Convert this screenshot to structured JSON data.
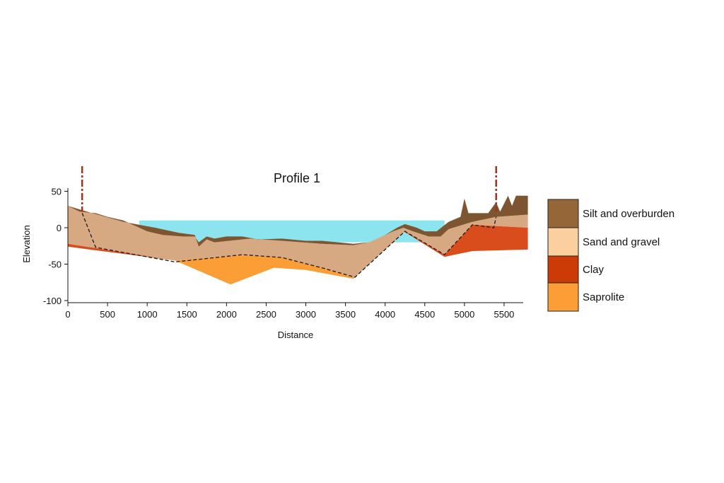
{
  "title": "Profile 1",
  "x_axis": {
    "label": "Distance",
    "min": 0,
    "max": 5800,
    "ticks": [
      "0",
      "500",
      "1000",
      "1500",
      "2000",
      "2500",
      "3000",
      "3500",
      "4000",
      "4500",
      "5000",
      "5500"
    ]
  },
  "y_axis": {
    "label": "Elevation",
    "min": -100,
    "max": 55,
    "ticks": [
      "50",
      "0",
      "-50",
      "-100"
    ]
  },
  "legend": [
    {
      "label": "Silt and overburden",
      "color": "#956638"
    },
    {
      "label": "Sand and gravel",
      "color": "#FBCF9E"
    },
    {
      "label": "Clay",
      "color": "#CC3A06"
    },
    {
      "label": "Saprolite",
      "color": "#FB9E35"
    }
  ],
  "colors": {
    "water": "#8BE4EE",
    "silt": "#7D5631",
    "sand": "#D6A982",
    "clay": "#D94D1C",
    "saprolite": "#FB9E35",
    "dashed_boundary": "#1a1a1a",
    "survey_marker": "#A5321A"
  },
  "water_level": 10,
  "layers": {
    "saprolite_bottom": [
      [
        0,
        -25
      ],
      [
        1350,
        -45
      ],
      [
        2050,
        -78
      ],
      [
        2600,
        -55
      ],
      [
        3000,
        -58
      ],
      [
        3600,
        -70
      ]
    ],
    "clay_boundary": [
      [
        0,
        -22
      ],
      [
        1350,
        -45
      ],
      [
        2200,
        -37
      ],
      [
        2700,
        -41
      ],
      [
        3200,
        -55
      ],
      [
        3620,
        -68
      ],
      [
        4250,
        -5
      ],
      [
        4750,
        -37
      ],
      [
        5100,
        4
      ],
      [
        5800,
        0
      ]
    ],
    "clay_bottom_east": [
      [
        4250,
        -6
      ],
      [
        4750,
        -40
      ],
      [
        5100,
        -32
      ],
      [
        5800,
        -30
      ]
    ],
    "sand_top": [
      [
        0,
        30
      ],
      [
        150,
        25
      ],
      [
        700,
        8
      ],
      [
        1100,
        0
      ],
      [
        1400,
        -7
      ],
      [
        1600,
        -10
      ],
      [
        1650,
        -26
      ],
      [
        1750,
        -16
      ],
      [
        1850,
        -20
      ],
      [
        2300,
        -15
      ],
      [
        2700,
        -18
      ],
      [
        3200,
        -22
      ],
      [
        3600,
        -24
      ],
      [
        3800,
        -20
      ],
      [
        4100,
        -5
      ],
      [
        4230,
        0
      ],
      [
        4350,
        -5
      ],
      [
        4550,
        -12
      ],
      [
        4700,
        -12
      ],
      [
        4800,
        -2
      ],
      [
        5100,
        8
      ],
      [
        5400,
        15
      ],
      [
        5800,
        18
      ]
    ],
    "silt_top": [
      [
        0,
        30
      ],
      [
        150,
        22
      ],
      [
        350,
        20
      ],
      [
        500,
        15
      ],
      [
        700,
        10
      ],
      [
        800,
        5
      ],
      [
        900,
        0
      ],
      [
        1000,
        -5
      ],
      [
        1200,
        -10
      ],
      [
        1450,
        -12
      ],
      [
        1600,
        -12
      ],
      [
        1650,
        -20
      ],
      [
        1750,
        -12
      ],
      [
        1850,
        -15
      ],
      [
        2000,
        -12
      ],
      [
        2200,
        -12
      ],
      [
        2400,
        -16
      ],
      [
        2700,
        -15
      ],
      [
        3000,
        -18
      ],
      [
        3200,
        -18
      ],
      [
        3400,
        -20
      ],
      [
        3600,
        -22
      ],
      [
        3800,
        -20
      ],
      [
        4000,
        -10
      ],
      [
        4150,
        0
      ],
      [
        4250,
        5
      ],
      [
        4400,
        0
      ],
      [
        4500,
        -5
      ],
      [
        4650,
        -5
      ],
      [
        4800,
        8
      ],
      [
        4950,
        15
      ],
      [
        5000,
        40
      ],
      [
        5050,
        20
      ],
      [
        5300,
        20
      ],
      [
        5400,
        35
      ],
      [
        5450,
        22
      ],
      [
        5550,
        44
      ],
      [
        5600,
        30
      ],
      [
        5650,
        44
      ],
      [
        5800,
        44
      ]
    ],
    "dashed_trace": [
      [
        180,
        20
      ],
      [
        350,
        -27
      ],
      [
        1350,
        -47
      ],
      [
        2200,
        -37
      ],
      [
        2700,
        -41
      ],
      [
        3200,
        -55
      ],
      [
        3620,
        -68
      ],
      [
        4250,
        -5
      ],
      [
        4750,
        -37
      ],
      [
        5100,
        4
      ],
      [
        5370,
        0
      ],
      [
        5400,
        15
      ]
    ]
  },
  "survey_markers": [
    180,
    5400
  ]
}
